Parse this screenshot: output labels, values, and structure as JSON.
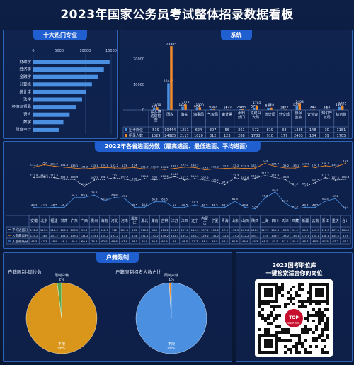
{
  "header": {
    "title": "2023年国家公务员考试整体招录数据看板"
  },
  "panels": {
    "majors_title": "十大热门专业",
    "system_title": "系统",
    "province_title": "2022年各省进面分数（最高进面、最低进面、平均进面）",
    "household_title": "户籍限制",
    "qr_title_line1": "2023国考职位库",
    "qr_title_line2": "一键检索适合你的岗位"
  },
  "colors": {
    "bar_blue": "#4a8fe0",
    "bar_orange": "#f08a2a",
    "line_gray": "#c8d0dc",
    "line_orange": "#f08a2a",
    "line_blue": "#4a8fe0",
    "pie_gold": "#d9961a",
    "pie_green": "#5aa847",
    "pie_blue": "#4a8fe0",
    "pie_orange": "#f08a2a"
  },
  "chart_data": [
    {
      "type": "bar",
      "title": "十大热门专业",
      "orientation": "horizontal",
      "categories": [
        "财政学",
        "经济学",
        "金融学",
        "计算机",
        "统计学",
        "法学",
        "经济与贸易",
        "语言",
        "数学",
        "财会审计"
      ],
      "values": [
        14700,
        13600,
        12400,
        11300,
        10200,
        9400,
        8300,
        7000,
        5800,
        4900
      ],
      "xlim": [
        0,
        15000
      ],
      "xticks": [
        "0",
        "5000",
        "10000",
        "15000"
      ]
    },
    {
      "type": "bar",
      "title": "系统",
      "categories": [
        "出入境边防检查",
        "国税",
        "海关",
        "海事局",
        "气象局",
        "审计署",
        "水利部门",
        "铁路公安局",
        "统计局",
        "外交部",
        "银保监会",
        "证监会",
        "知识产权局",
        "综合岗"
      ],
      "series": [
        {
          "name": "招考岗位",
          "values": [
            539,
            10444,
            1251,
            624,
            307,
            56,
            261,
            572,
            819,
            38,
            1385,
            148,
            30,
            1181
          ]
        },
        {
          "name": "招录人数",
          "values": [
            1029,
            24985,
            2117,
            1020,
            312,
            123,
            288,
            1783,
            910,
            177,
            2403,
            164,
            59,
            1705
          ]
        }
      ],
      "ylim": [
        0,
        25000
      ],
      "yticks": [
        "0",
        "10000",
        "20000"
      ]
    },
    {
      "type": "line",
      "title": "2022年各省进面分数（最高进面、最低进面、平均进面）",
      "categories": [
        "安徽",
        "北京",
        "福建",
        "甘肃",
        "广东",
        "广西",
        "贵州",
        "海南",
        "河北",
        "河南",
        "黑龙江",
        "湖北",
        "湖南",
        "吉林",
        "江苏",
        "江西",
        "辽宁",
        "内蒙古",
        "宁夏",
        "青海",
        "山东",
        "山西",
        "陕西",
        "上海",
        "四川",
        "天津",
        "西藏",
        "新疆",
        "云南",
        "浙江",
        "重庆",
        "合计"
      ],
      "series": [
        {
          "name": "平均进面分",
          "values": [
            112.8,
            113.5,
            112.5,
            108.3,
            108.9,
            93.6,
            107.3,
            108.7,
            112.0,
            109.5,
            105.0,
            110.4,
            108.0,
            110.2,
            114.5,
            107.2,
            110.5,
            107.2,
            103.2,
            97.6,
            112.3,
            107.6,
            111.2,
            117.2,
            112.6,
            108.5,
            94.2,
            94.3,
            101.5,
            112.3,
            107.1,
            108.9
          ]
        },
        {
          "name": "入面最高分",
          "values": [
            135.2,
            140.0,
            137.2,
            134.8,
            133.1,
            131.2,
            133.1,
            134.2,
            133.2,
            133.0,
            134.0,
            131.2,
            131.2,
            130.2,
            132.1,
            135.2,
            134.2,
            129.2,
            131.2,
            132.1,
            133.2,
            132.2,
            133.1,
            143.0,
            136.7,
            133.2,
            133.1,
            137.1,
            134.1,
            138.1,
            135.1,
            143.0
          ]
        },
        {
          "name": "入面最低分",
          "values": [
            48.3,
            47.3,
            48.5,
            48.4,
            69.2,
            69.9,
            74.8,
            62.5,
            69.8,
            67.8,
            48.5,
            48.8,
            60.3,
            60.5,
            48.0,
            48.5,
            53.7,
            48.5,
            48.5,
            48.5,
            61.5,
            48.4,
            45.3,
            68.5,
            81.5,
            57.2,
            45.5,
            48.7,
            48.5,
            61.5,
            67.2,
            45.3
          ]
        }
      ],
      "ylim": [
        40,
        150
      ]
    },
    {
      "type": "pie",
      "title": "户籍限制-岗位数",
      "labels": [
        "限制户籍",
        "不限"
      ],
      "values": [
        2,
        98
      ],
      "label_text": [
        "限制户籍 2%",
        "不限 98%"
      ]
    },
    {
      "type": "pie",
      "title": "户籍限制招考人数占比",
      "labels": [
        "限制户籍",
        "不限"
      ],
      "values": [
        1,
        99
      ],
      "label_text": [
        "限制户籍 1%",
        "不限 99%"
      ]
    }
  ],
  "legend": {
    "system": [
      "招考岗位",
      "招录人数"
    ],
    "province": [
      "平均进面分",
      "入面最高分",
      "入面最低分"
    ]
  },
  "qr": {
    "logo_top": "TOP",
    "logo_bottom": "SINCE 2001"
  }
}
